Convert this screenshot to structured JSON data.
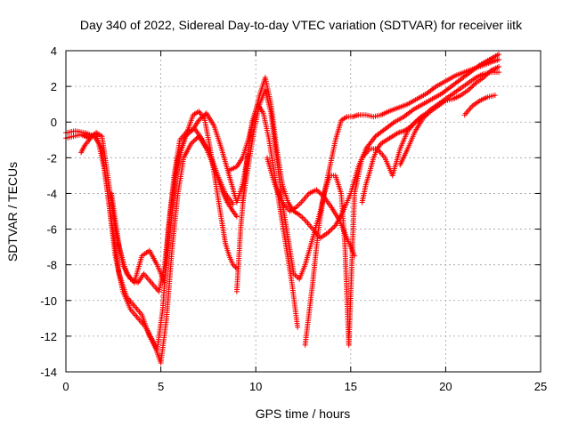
{
  "chart_data": {
    "type": "scatter",
    "title": "Day 340 of 2022, Sidereal Day-to-day VTEC variation (SDTVAR) for receiver iitk",
    "xlabel": "GPS time / hours",
    "ylabel": "SDTVAR / TECUs",
    "xlim": [
      0,
      25
    ],
    "ylim": [
      -14,
      4
    ],
    "xticks": [
      0,
      5,
      10,
      15,
      20,
      25
    ],
    "yticks": [
      -14,
      -12,
      -10,
      -8,
      -6,
      -4,
      -2,
      0,
      2,
      4
    ],
    "grid": true,
    "marker": "plus",
    "color": "#ff0000",
    "series": [
      {
        "x": [
          0,
          0.5,
          1.0,
          1.5,
          1.9,
          2.2,
          2.6,
          3.0,
          3.4,
          3.8,
          4.2,
          4.6,
          5.0,
          5.3,
          5.6,
          5.9,
          6.2,
          6.6,
          7.0,
          7.4,
          7.8,
          8.2,
          8.5,
          8.8,
          9.0
        ],
        "y": [
          -0.6,
          -0.5,
          -0.6,
          -0.8,
          -1.5,
          -4.0,
          -7.5,
          -9.5,
          -10.5,
          -11.0,
          -11.5,
          -12.3,
          -13.5,
          -11.0,
          -7.0,
          -4.0,
          -2.0,
          -1.2,
          -0.8,
          -1.5,
          -2.5,
          -3.8,
          -4.5,
          -5.0,
          -5.3
        ]
      },
      {
        "x": [
          0,
          0.4,
          0.8,
          1.2,
          1.6,
          2.0,
          2.4,
          2.8,
          3.2,
          3.6,
          4.0,
          4.4,
          4.8,
          5.1,
          5.4,
          5.7,
          6.0,
          6.4,
          6.8,
          7.2,
          7.6,
          8.0,
          8.4,
          8.8
        ],
        "y": [
          -0.9,
          -0.8,
          -0.7,
          -0.9,
          -0.6,
          -2.5,
          -5.5,
          -8.5,
          -9.8,
          -10.3,
          -10.8,
          -12.0,
          -12.8,
          -10.5,
          -6.0,
          -3.0,
          -1.0,
          -0.5,
          -0.4,
          -1.0,
          -1.8,
          -3.0,
          -4.0,
          -4.6
        ]
      },
      {
        "x": [
          0.8,
          1.0,
          1.3,
          1.6,
          1.9,
          2.2,
          2.6,
          3.0,
          3.4,
          3.8,
          4.1,
          4.5,
          4.9,
          5.2,
          5.5,
          5.9,
          6.3,
          6.7,
          7.0,
          7.4,
          7.8,
          8.2,
          8.6,
          9.0,
          9.3,
          9.6
        ],
        "y": [
          -1.7,
          -1.3,
          -0.9,
          -0.6,
          -0.8,
          -3.0,
          -6.0,
          -8.0,
          -8.8,
          -9.0,
          -8.5,
          -9.0,
          -9.5,
          -8.0,
          -5.0,
          -2.0,
          -0.8,
          -0.4,
          0.1,
          0.5,
          -0.2,
          -1.5,
          -3.0,
          -4.5,
          -3.5,
          -1.8
        ]
      },
      {
        "x": [
          2.4,
          2.8,
          3.2,
          3.6,
          4.0,
          4.4,
          4.8,
          5.2,
          5.5,
          5.8,
          6.1,
          6.4,
          6.7,
          7.0,
          7.3,
          7.6,
          7.9,
          8.2,
          8.4,
          8.6,
          8.8,
          9.0
        ],
        "y": [
          -4.0,
          -7.0,
          -8.5,
          -9.0,
          -7.5,
          -7.2,
          -8.0,
          -9.0,
          -6.0,
          -3.0,
          -1.5,
          -0.5,
          0.4,
          0.6,
          0.2,
          -1.5,
          -3.5,
          -5.5,
          -6.8,
          -7.5,
          -8.0,
          -8.2
        ]
      },
      {
        "x": [
          8.6,
          9.0,
          9.3,
          9.6,
          9.9,
          10.2,
          10.5,
          10.8,
          11.1,
          11.4,
          11.7,
          12.0,
          12.3,
          12.6,
          13.0,
          13.4,
          13.8,
          14.2,
          14.6,
          15.0,
          15.4,
          15.8,
          16.3,
          16.8,
          17.3,
          17.8,
          18.3,
          18.8,
          19.3,
          19.8,
          20.3,
          20.8,
          21.3,
          21.8,
          22.3,
          22.8
        ],
        "y": [
          -2.7,
          -2.5,
          -2.0,
          -1.0,
          0.2,
          1.5,
          2.5,
          1.0,
          -1.5,
          -3.5,
          -4.5,
          -5.0,
          -5.2,
          -5.5,
          -6.0,
          -6.5,
          -6.2,
          -5.8,
          -5.0,
          -4.0,
          -2.5,
          -1.5,
          -0.8,
          -0.4,
          0.0,
          0.3,
          0.7,
          1.0,
          1.3,
          1.6,
          2.0,
          2.4,
          2.8,
          3.2,
          3.5,
          3.8
        ]
      },
      {
        "x": [
          9.3,
          9.6,
          9.9,
          10.2,
          10.5,
          10.8,
          11.1,
          11.4,
          11.7,
          12.0,
          12.3,
          12.6,
          13.0,
          13.4,
          13.8,
          14.2,
          14.5,
          14.8,
          15.1,
          15.4,
          15.8,
          16.2,
          16.6,
          17.0,
          17.5,
          18.0,
          18.5,
          19.0,
          19.5,
          20.0,
          20.5,
          21.0,
          21.5,
          22.0,
          22.5,
          22.8
        ],
        "y": [
          -4.5,
          -2.5,
          -0.5,
          1.0,
          1.8,
          0.5,
          -2.0,
          -4.5,
          -6.5,
          -8.5,
          -8.8,
          -8.0,
          -6.5,
          -5.0,
          -3.0,
          -1.0,
          0.1,
          0.3,
          0.3,
          0.4,
          0.4,
          0.3,
          0.4,
          0.6,
          0.8,
          1.0,
          1.3,
          1.6,
          2.0,
          2.3,
          2.6,
          2.8,
          3.0,
          3.2,
          3.4,
          3.5
        ]
      },
      {
        "x": [
          9.0,
          9.2,
          9.5,
          9.8,
          10.1,
          10.4,
          10.7,
          11.0,
          11.3,
          11.6,
          11.9,
          12.2
        ],
        "y": [
          -9.5,
          -6.0,
          -2.5,
          0.0,
          1.0,
          0.5,
          -1.0,
          -3.0,
          -5.0,
          -7.0,
          -9.0,
          -11.5
        ]
      },
      {
        "x": [
          10.6,
          11.0,
          11.4,
          11.8,
          12.1,
          12.4,
          12.8,
          13.2,
          13.6,
          14.0,
          14.4,
          14.8,
          15.2
        ],
        "y": [
          -2.0,
          -3.5,
          -4.5,
          -5.0,
          -4.8,
          -4.5,
          -4.0,
          -3.8,
          -4.2,
          -4.8,
          -5.5,
          -6.5,
          -7.5
        ]
      },
      {
        "x": [
          12.6,
          13.0,
          13.3,
          13.6,
          13.9,
          14.2,
          14.5,
          14.7,
          14.9,
          15.2,
          15.6,
          16.0,
          16.4,
          16.8,
          17.2,
          17.6,
          18.0,
          18.4,
          18.8,
          19.2,
          19.6,
          20.0,
          20.4,
          20.8,
          21.2,
          21.6,
          22.0,
          22.4,
          22.8
        ],
        "y": [
          -12.5,
          -9.0,
          -6.0,
          -4.0,
          -3.0,
          -3.0,
          -4.0,
          -7.0,
          -12.5,
          -4.0,
          -2.0,
          -1.5,
          -1.5,
          -2.0,
          -3.0,
          -1.5,
          -0.5,
          0.0,
          0.3,
          0.7,
          1.0,
          1.3,
          1.6,
          1.9,
          2.2,
          2.5,
          2.7,
          2.8,
          2.8
        ]
      },
      {
        "x": [
          15.6,
          15.8,
          16.0,
          16.2,
          16.4,
          16.6,
          16.9,
          17.2,
          17.5,
          17.8,
          18.1,
          18.4,
          18.7,
          19.0
        ],
        "y": [
          -4.5,
          -3.5,
          -2.8,
          -2.0,
          -1.5,
          -1.2,
          -1.0,
          -0.8,
          -0.6,
          -0.5,
          -0.3,
          0.0,
          0.3,
          0.5
        ]
      },
      {
        "x": [
          17.6,
          18.0,
          18.4,
          18.8,
          19.2,
          19.6,
          20.0,
          20.4,
          20.8,
          21.2,
          21.6,
          22.0,
          22.4,
          22.8
        ],
        "y": [
          -2.4,
          -1.5,
          -0.5,
          0.2,
          0.6,
          0.9,
          1.2,
          1.3,
          1.5,
          1.8,
          2.2,
          2.5,
          2.9,
          3.1
        ]
      },
      {
        "x": [
          21.0,
          21.4,
          21.8,
          22.2,
          22.6
        ],
        "y": [
          0.4,
          0.9,
          1.2,
          1.4,
          1.5
        ]
      }
    ]
  }
}
